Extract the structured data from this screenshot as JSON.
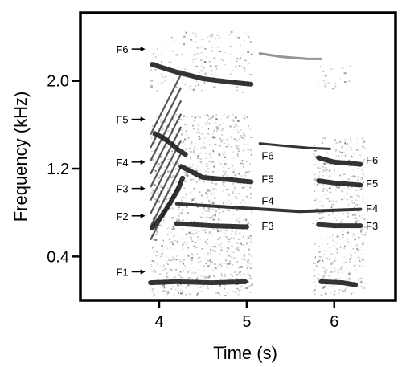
{
  "chart_data": {
    "type": "heatmap",
    "title": "",
    "xlabel": "Time (s)",
    "ylabel": "Frequency (kHz)",
    "xlim": [
      3.1,
      6.7
    ],
    "ylim": [
      0.0,
      2.62
    ],
    "xticks": [
      4,
      5,
      6
    ],
    "yticks": [
      0.4,
      1.2,
      2.0
    ],
    "xtick_labels": [
      "4",
      "5",
      "6"
    ],
    "ytick_labels": [
      "0.4",
      "1.2",
      "2.0"
    ],
    "colorscale": "grayscale, darker = higher energy",
    "grid": false,
    "legend": "none",
    "formant_arrows": [
      {
        "label": "F6",
        "time": 3.85,
        "freq": 2.29
      },
      {
        "label": "F5",
        "time": 3.85,
        "freq": 1.65
      },
      {
        "label": "F4",
        "time": 3.85,
        "freq": 1.26
      },
      {
        "label": "F3",
        "time": 3.85,
        "freq": 1.02
      },
      {
        "label": "F2",
        "time": 3.85,
        "freq": 0.77
      },
      {
        "label": "F1",
        "time": 3.85,
        "freq": 0.26
      }
    ],
    "formant_labels": [
      {
        "label": "F6",
        "time": 5.24,
        "freq": 1.32
      },
      {
        "label": "F5",
        "time": 5.24,
        "freq": 1.11
      },
      {
        "label": "F4",
        "time": 5.24,
        "freq": 0.91
      },
      {
        "label": "F3",
        "time": 5.24,
        "freq": 0.68
      },
      {
        "label": "F6",
        "time": 6.43,
        "freq": 1.28
      },
      {
        "label": "F5",
        "time": 6.43,
        "freq": 1.07
      },
      {
        "label": "F4",
        "time": 6.43,
        "freq": 0.84
      },
      {
        "label": "F3",
        "time": 6.43,
        "freq": 0.68
      }
    ],
    "tracks": [
      {
        "name": "F2 sweep",
        "points": [
          [
            3.92,
            0.66
          ],
          [
            4.02,
            0.76
          ],
          [
            4.12,
            0.88
          ],
          [
            4.22,
            1.02
          ],
          [
            4.27,
            1.12
          ]
        ]
      },
      {
        "name": "F3 / F4 sweep",
        "points": [
          [
            3.95,
            1.52
          ],
          [
            4.05,
            1.48
          ],
          [
            4.15,
            1.42
          ],
          [
            4.22,
            1.37
          ],
          [
            4.3,
            1.33
          ]
        ]
      },
      {
        "name": "F6 band",
        "points": [
          [
            3.92,
            2.15
          ],
          [
            4.2,
            2.08
          ],
          [
            4.5,
            2.02
          ],
          [
            4.8,
            1.99
          ],
          [
            5.05,
            1.97
          ]
        ]
      },
      {
        "name": "F5 band",
        "points": [
          [
            4.25,
            1.22
          ],
          [
            4.5,
            1.12
          ],
          [
            4.8,
            1.1
          ],
          [
            5.05,
            1.08
          ]
        ]
      },
      {
        "name": "F4 band",
        "points": [
          [
            4.2,
            0.88
          ],
          [
            4.6,
            0.86
          ],
          [
            5.0,
            0.84
          ],
          [
            5.6,
            0.81
          ],
          [
            6.3,
            0.83
          ]
        ]
      },
      {
        "name": "F3 band",
        "points": [
          [
            4.2,
            0.7
          ],
          [
            4.6,
            0.68
          ],
          [
            5.0,
            0.67
          ]
        ]
      },
      {
        "name": "F3 band (second)",
        "points": [
          [
            5.82,
            0.69
          ],
          [
            6.0,
            0.68
          ],
          [
            6.3,
            0.68
          ]
        ]
      },
      {
        "name": "F5 band (second)",
        "points": [
          [
            5.82,
            1.09
          ],
          [
            6.0,
            1.07
          ],
          [
            6.3,
            1.05
          ]
        ]
      },
      {
        "name": "F6 band (second)",
        "points": [
          [
            5.82,
            1.3
          ],
          [
            6.0,
            1.26
          ],
          [
            6.3,
            1.24
          ]
        ]
      },
      {
        "name": "whistle (upper)",
        "points": [
          [
            5.15,
            2.25
          ],
          [
            5.4,
            2.22
          ],
          [
            5.7,
            2.2
          ],
          [
            5.85,
            2.2
          ]
        ]
      },
      {
        "name": "whistle (lower)",
        "points": [
          [
            5.15,
            1.43
          ],
          [
            5.4,
            1.41
          ],
          [
            5.7,
            1.39
          ],
          [
            5.95,
            1.38
          ]
        ]
      },
      {
        "name": "F1 band",
        "points": [
          [
            3.9,
            0.16
          ],
          [
            4.2,
            0.17
          ],
          [
            4.6,
            0.16
          ],
          [
            5.0,
            0.17
          ]
        ]
      },
      {
        "name": "F1 band (second)",
        "points": [
          [
            5.85,
            0.17
          ],
          [
            6.1,
            0.16
          ],
          [
            6.25,
            0.14
          ]
        ]
      }
    ],
    "noise_regions": [
      {
        "name": "region A",
        "x": [
          3.9,
          5.05
        ],
        "y": [
          0.05,
          1.7
        ],
        "density": 0.55
      },
      {
        "name": "region A high",
        "x": [
          3.9,
          5.05
        ],
        "y": [
          1.9,
          2.45
        ],
        "density": 0.25
      },
      {
        "name": "region B",
        "x": [
          5.75,
          6.35
        ],
        "y": [
          0.05,
          1.5
        ],
        "density": 0.5
      },
      {
        "name": "region B high",
        "x": [
          5.8,
          6.2
        ],
        "y": [
          1.9,
          2.15
        ],
        "density": 0.2
      }
    ]
  }
}
